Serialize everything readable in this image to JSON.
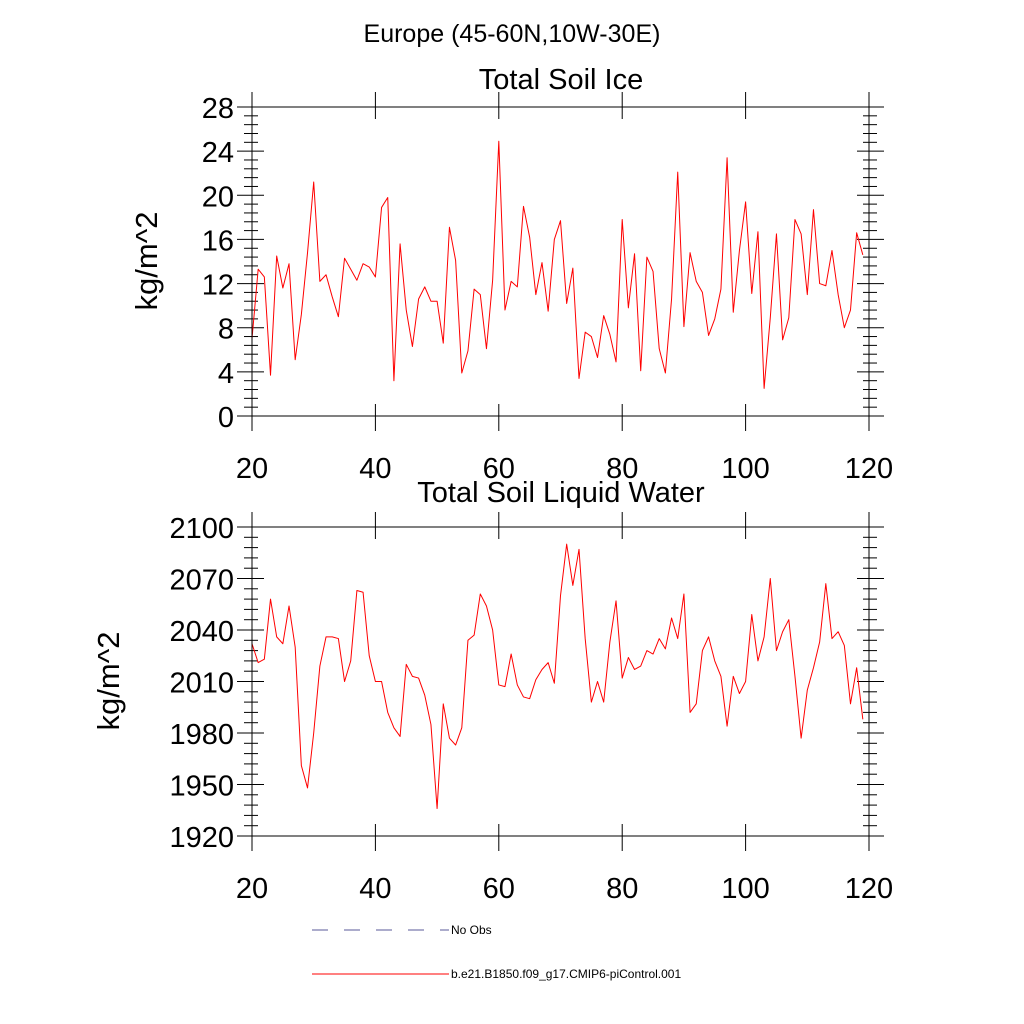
{
  "figure": {
    "title": "Europe (45-60N,10W-30E)"
  },
  "legend": {
    "entries": [
      {
        "label": "No Obs",
        "color": "#5a5a9a",
        "style": "dashed"
      },
      {
        "label": "b.e21.B1850.f09_g17.CMIP6-piControl.001",
        "color": "#ff0000",
        "style": "solid"
      }
    ]
  },
  "chart_data": [
    {
      "type": "line",
      "title": "Total Soil Ice",
      "xlabel": "",
      "ylabel": "kg/m^2",
      "xlim": [
        20,
        120
      ],
      "ylim": [
        0,
        28
      ],
      "xticks": [
        20,
        40,
        60,
        80,
        100,
        120
      ],
      "yticks": [
        0,
        4,
        8,
        12,
        16,
        20,
        24,
        28
      ],
      "series": [
        {
          "name": "b.e21.B1850.f09_g17.CMIP6-piControl.001",
          "color": "#ff0000",
          "x_start": 20,
          "values": [
            7.0,
            13.3,
            12.6,
            3.7,
            14.5,
            11.6,
            13.8,
            5.1,
            9.2,
            14.8,
            21.2,
            12.2,
            12.8,
            10.8,
            9.0,
            14.3,
            13.3,
            12.3,
            13.8,
            13.5,
            12.6,
            18.9,
            19.8,
            3.2,
            15.6,
            9.6,
            6.3,
            10.6,
            11.7,
            10.4,
            10.4,
            6.6,
            17.1,
            14.1,
            3.9,
            5.9,
            11.5,
            11.0,
            6.1,
            12.3,
            24.9,
            9.6,
            12.2,
            11.7,
            19.0,
            16.2,
            11.0,
            13.9,
            9.5,
            16.0,
            17.7,
            10.2,
            13.4,
            3.4,
            7.6,
            7.2,
            5.3,
            9.1,
            7.4,
            4.9,
            17.8,
            9.8,
            14.7,
            4.1,
            14.4,
            13.1,
            6.1,
            3.9,
            10.6,
            22.1,
            8.1,
            14.8,
            12.2,
            11.2,
            7.3,
            8.8,
            11.5,
            23.4,
            9.4,
            15.0,
            19.4,
            11.1,
            16.7,
            2.5,
            8.9,
            16.5,
            6.9,
            8.9,
            17.8,
            16.5,
            11.0,
            18.7,
            12.0,
            11.8,
            15.0,
            11.0,
            8.0,
            9.6,
            16.6,
            14.6
          ]
        }
      ]
    },
    {
      "type": "line",
      "title": "Total Soil Liquid Water",
      "xlabel": "",
      "ylabel": "kg/m^2",
      "xlim": [
        20,
        120
      ],
      "ylim": [
        1920,
        2100
      ],
      "xticks": [
        20,
        40,
        60,
        80,
        100,
        120
      ],
      "yticks": [
        1920,
        1950,
        1980,
        2010,
        2040,
        2070,
        2100
      ],
      "series": [
        {
          "name": "b.e21.B1850.f09_g17.CMIP6-piControl.001",
          "color": "#ff0000",
          "x_start": 20,
          "values": [
            2032,
            2021,
            2023,
            2058,
            2036,
            2032,
            2054,
            2030,
            1961,
            1948,
            1980,
            2019,
            2036,
            2036,
            2035,
            2010,
            2022,
            2063,
            2062,
            2025,
            2010,
            2010,
            1992,
            1983,
            1978,
            2020,
            2013,
            2012,
            2002,
            1985,
            1936,
            1997,
            1977,
            1973,
            1983,
            2034,
            2037,
            2061,
            2054,
            2040,
            2008,
            2007,
            2026,
            2008,
            2001,
            2000,
            2011,
            2017,
            2021,
            2009,
            2060,
            2090,
            2066,
            2087,
            2035,
            1998,
            2010,
            1998,
            2033,
            2057,
            2012,
            2024,
            2017,
            2019,
            2028,
            2026,
            2035,
            2029,
            2047,
            2035,
            2061,
            1992,
            1997,
            2028,
            2036,
            2022,
            2013,
            1984,
            2013,
            2003,
            2010,
            2049,
            2022,
            2036,
            2070,
            2028,
            2039,
            2046,
            2013,
            1977,
            2005,
            2018,
            2033,
            2067,
            2035,
            2039,
            2031,
            1997,
            2018,
            1988
          ]
        }
      ]
    }
  ]
}
